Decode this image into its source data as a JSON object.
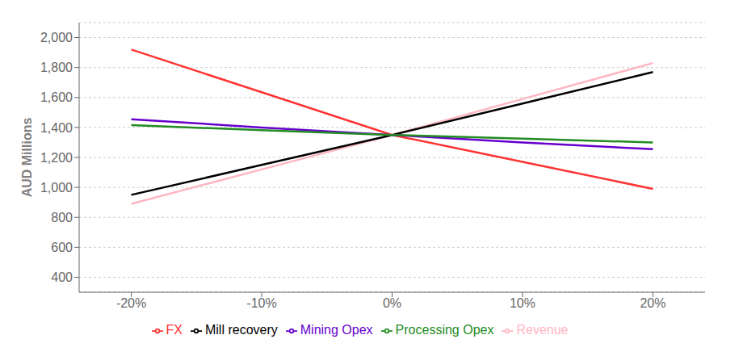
{
  "chart_data": {
    "type": "line",
    "ylabel": "AUD Millions",
    "x": [
      -20,
      -10,
      0,
      10,
      20
    ],
    "series": [
      {
        "name": "FX",
        "color": "#FF3333",
        "values": [
          1920,
          1635,
          1350,
          1170,
          990
        ]
      },
      {
        "name": "Revenue",
        "color": "#FFB6C1",
        "values": [
          890,
          1120,
          1350,
          1590,
          1830
        ]
      },
      {
        "name": "Mill recovery",
        "color": "#000000",
        "values": [
          950,
          1150,
          1350,
          1560,
          1770
        ]
      },
      {
        "name": "Mining Opex",
        "color": "#6600CC",
        "values": [
          1455,
          1400,
          1350,
          1300,
          1255
        ]
      },
      {
        "name": "Processing Opex",
        "color": "#228B22",
        "values": [
          1415,
          1382,
          1350,
          1325,
          1300
        ]
      }
    ],
    "xlim": [
      -24,
      24
    ],
    "xticks": [
      {
        "value": -20,
        "label": "-20%"
      },
      {
        "value": -10,
        "label": "-10%"
      },
      {
        "value": 0,
        "label": "0%"
      },
      {
        "value": 10,
        "label": "10%"
      },
      {
        "value": 20,
        "label": "20%"
      }
    ],
    "ylim": [
      300,
      2100
    ],
    "yticks": [
      400,
      600,
      800,
      {
        "value": 1000,
        "label": "1,000"
      },
      {
        "value": 1200,
        "label": "1,200"
      },
      {
        "value": 1400,
        "label": "1,400"
      },
      {
        "value": 1600,
        "label": "1,600"
      },
      {
        "value": 1800,
        "label": "1,800"
      },
      {
        "value": 2000,
        "label": "2,000"
      }
    ],
    "grid": "y",
    "legend": "bottom"
  }
}
